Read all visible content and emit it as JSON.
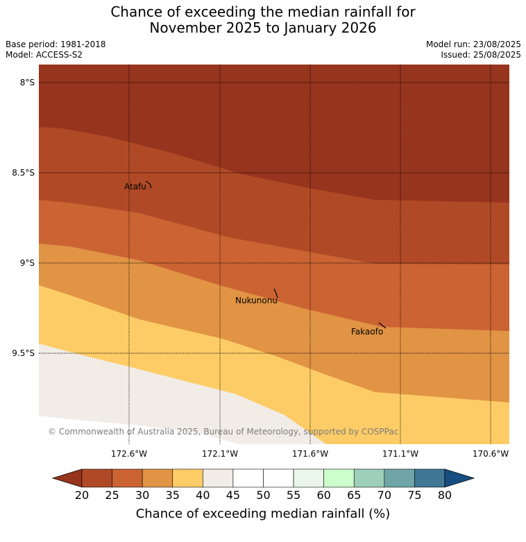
{
  "title": {
    "line1": "Chance of exceeding the median rainfall for",
    "line2": "November 2025 to January 2026"
  },
  "meta": {
    "base_period": "Base period: 1981-2018",
    "model": "Model: ACCESS-S2",
    "model_run": "Model run: 23/08/2025",
    "issued": "Issued: 25/08/2025"
  },
  "map": {
    "lat_labels": [
      "8°S",
      "8.5°S",
      "9°S",
      "9.5°S"
    ],
    "lon_labels": [
      "172.6°W",
      "172.1°W",
      "171.6°W",
      "171.1°W",
      "170.6°W"
    ],
    "places": [
      "Atafu",
      "Nukunonu",
      "Fakaofo"
    ],
    "copyright": "© Commonwealth of Australia 2025, Bureau of Meteorology, supported by COSPPac",
    "band_colors": [
      "#96341e",
      "#b04a26",
      "#cb6333",
      "#e19444",
      "#fdcc66",
      "#f1ece6"
    ]
  },
  "colorbar": {
    "ticks": [
      "20",
      "25",
      "30",
      "35",
      "40",
      "45",
      "50",
      "55",
      "60",
      "65",
      "70",
      "75",
      "80"
    ],
    "colors": [
      "#b04a26",
      "#cb6333",
      "#e19444",
      "#fdcc66",
      "#f1ece6",
      "#ffffff",
      "#ffffff",
      "#eaf6ea",
      "#ccffcc",
      "#9dcfb9",
      "#6fa5a6",
      "#3f7794"
    ],
    "under_color": "#96341e",
    "over_color": "#174e82",
    "title": "Chance of exceeding median rainfall (%)"
  }
}
